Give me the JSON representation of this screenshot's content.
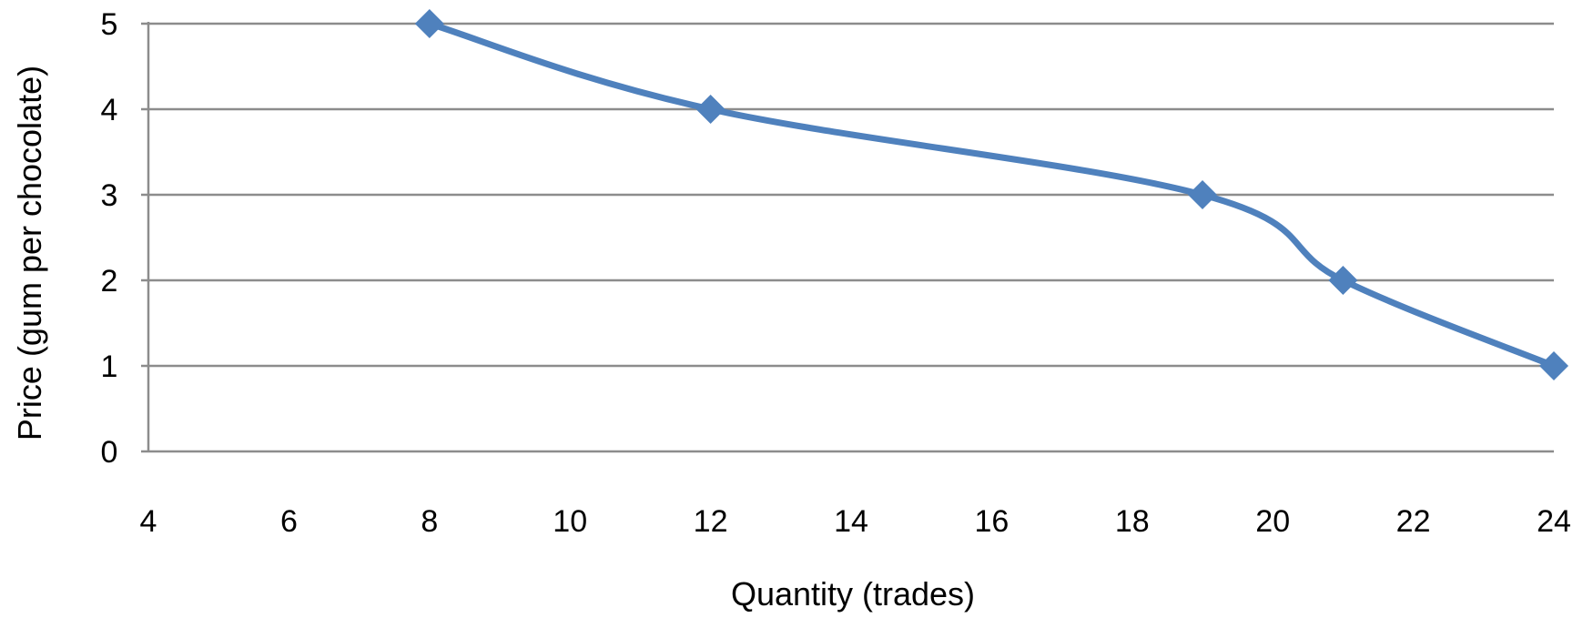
{
  "chart_data": {
    "type": "line",
    "xlabel": "Quantity (trades)",
    "ylabel": "Price (gum per chocolate)",
    "xlim": [
      4,
      24
    ],
    "ylim": [
      0,
      5
    ],
    "x_ticks": [
      4,
      6,
      8,
      10,
      12,
      14,
      16,
      18,
      20,
      22,
      24
    ],
    "y_ticks": [
      0,
      1,
      2,
      3,
      4,
      5
    ],
    "grid": "horizontal",
    "smoothed": true,
    "marker": "diamond",
    "colors": {
      "series": "#4F81BD",
      "grid": "#8C8C8C",
      "axis": "#8C8C8C"
    },
    "series": [
      {
        "x": [
          8,
          12,
          19,
          21,
          24
        ],
        "y": [
          5,
          4,
          3,
          2,
          1
        ]
      }
    ]
  }
}
